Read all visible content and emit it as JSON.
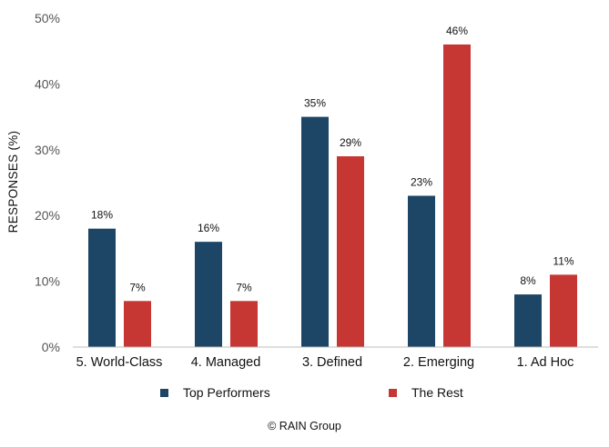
{
  "chart_data": {
    "type": "bar",
    "ylabel": "RESPONSES (%)",
    "ylim": [
      0,
      50
    ],
    "yticks": [
      "0%",
      "10%",
      "20%",
      "30%",
      "40%",
      "50%"
    ],
    "grid": false,
    "categories": [
      "5. World-Class",
      "4. Managed",
      "3. Defined",
      "2. Emerging",
      "1. Ad Hoc"
    ],
    "series": [
      {
        "name": "Top Performers",
        "color": "#1c4566",
        "values": [
          18,
          16,
          35,
          23,
          8
        ],
        "labels": [
          "18%",
          "16%",
          "35%",
          "23%",
          "8%"
        ]
      },
      {
        "name": "The Rest",
        "color": "#c63632",
        "values": [
          7,
          7,
          29,
          46,
          11
        ],
        "labels": [
          "7%",
          "7%",
          "29%",
          "46%",
          "11%"
        ]
      }
    ],
    "legend_position": "bottom"
  },
  "footer": {
    "credit": "© RAIN Group"
  }
}
